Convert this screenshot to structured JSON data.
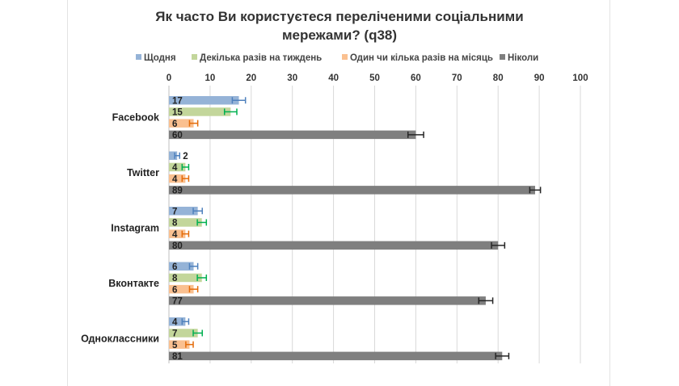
{
  "chart_data": {
    "type": "bar",
    "orientation": "horizontal",
    "title_lines": [
      "Як часто Ви користуєтеся переліченими соціальними",
      "мережами? (q38)"
    ],
    "xlim": [
      0,
      100
    ],
    "x_ticks": [
      0,
      10,
      20,
      30,
      40,
      50,
      60,
      70,
      80,
      90,
      100
    ],
    "grid": true,
    "legend_position": "top",
    "categories": [
      "Facebook",
      "Twitter",
      "Instagram",
      "Вконтакте",
      "Одноклассники"
    ],
    "series": [
      {
        "name": "Щодня",
        "color": "#95b3d7",
        "error_color": "#4f81bd",
        "values": [
          17,
          2,
          7,
          6,
          4
        ],
        "error": [
          1.6,
          0.6,
          1.1,
          1.0,
          0.8
        ]
      },
      {
        "name": "Декілька разів на тиждень",
        "color": "#c3d69b",
        "error_color": "#00b050",
        "values": [
          15,
          4,
          8,
          8,
          7
        ],
        "error": [
          1.5,
          0.8,
          1.1,
          1.1,
          1.1
        ]
      },
      {
        "name": "Один чи кілька разів на місяць",
        "color": "#fac090",
        "error_color": "#e46c0a",
        "values": [
          6,
          4,
          4,
          6,
          5
        ],
        "error": [
          1.0,
          0.8,
          0.8,
          1.0,
          0.9
        ]
      },
      {
        "name": "Ніколи",
        "color": "#7f7f7f",
        "error_color": "#262626",
        "values": [
          60,
          89,
          80,
          77,
          81
        ],
        "error": [
          1.9,
          1.3,
          1.6,
          1.7,
          1.6
        ]
      }
    ]
  }
}
